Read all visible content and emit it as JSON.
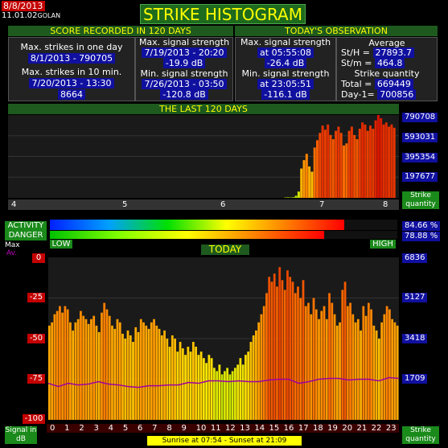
{
  "header": {
    "date": "8/8/2013",
    "time": "11.01.02",
    "location": "GOLAN",
    "title": "STRIKE HISTOGRAM"
  },
  "score_panel": {
    "title": "SCORE RECORDED IN 120 DAYS",
    "max_one_day_label": "Max. strikes in one day",
    "max_one_day_value": "8/1/2013 - 790705",
    "max_10min_label": "Max. strikes in 10 min.",
    "max_10min_value": "7/20/2013 - 13:30",
    "max_10min_count": "8664",
    "max_signal_label": "Max. signal strength",
    "max_signal_date": "7/19/2013 - 20:20",
    "max_signal_value": "-19.9 dB",
    "min_signal_label": "Min. signal strength",
    "min_signal_date": "7/26/2013 - 03:50",
    "min_signal_value": "-120.8 dB"
  },
  "today_panel": {
    "title": "TODAY'S OBSERVATION",
    "max_signal_label": "Max. signal strength",
    "max_signal_time": "at 05:55:08",
    "max_signal_value": "-26.4 dB",
    "min_signal_label": "Min. signal strength",
    "min_signal_time": "at 23:05:51",
    "min_signal_value": "-116.1 dB",
    "average_label": "Average",
    "st_h_label": "St/H =",
    "st_h_value": "27893.7",
    "st_m_label": "St/m =",
    "st_m_value": "464.8",
    "quantity_label": "Strike quantity",
    "total_label": "Total  =",
    "total_value": "669449",
    "day1_label": "Day-1=",
    "day1_value": "700856"
  },
  "last120": {
    "title": "THE LAST 120 DAYS",
    "y_labels": [
      "790708",
      "593031",
      "395354",
      "197677"
    ],
    "x_labels": [
      "4",
      "5",
      "6",
      "7",
      "8"
    ],
    "right_label": "Strike quantity"
  },
  "activity": {
    "activity_label": "ACTIVITY",
    "danger_label": "DANGER",
    "activity_value": "84.66 %",
    "danger_value": "78.88 %",
    "activity_fraction": 0.8466,
    "danger_fraction": 0.7888,
    "low_label": "LOW",
    "high_label": "HIGH"
  },
  "today_chart": {
    "title": "TODAY",
    "max_label": "Max",
    "av_label": "Av.",
    "y_left": [
      "0",
      "-25",
      "-50",
      "-75",
      "-100"
    ],
    "y_right": [
      "6836",
      "5127",
      "3418",
      "1709"
    ],
    "x_labels": [
      "0",
      "1",
      "2",
      "3",
      "4",
      "5",
      "6",
      "7",
      "8",
      "9",
      "10",
      "11",
      "12",
      "13",
      "14",
      "15",
      "16",
      "17",
      "18",
      "19",
      "20",
      "21",
      "22",
      "23"
    ],
    "left_axis_label": "Signal in dB",
    "right_axis_label": "Strike quantity",
    "sun_label": "Sunrise at 07:54  -  Sunset at 21:09"
  },
  "colors": {
    "title_bg": "#1e6a1e",
    "title_text": "#ffff00",
    "value_bg": "#1010a0",
    "date_bg": "#c40000"
  },
  "chart_data": [
    {
      "type": "bar",
      "title": "THE LAST 120 DAYS",
      "ylabel": "Strike quantity",
      "ylim": [
        0,
        790708
      ],
      "x_tick_labels": [
        "4",
        "5",
        "6",
        "7",
        "8"
      ],
      "values": [
        4000,
        5000,
        3500,
        6000,
        20000,
        60000,
        280000,
        360000,
        420000,
        300000,
        250000,
        480000,
        550000,
        620000,
        690000,
        650000,
        700000,
        600000,
        560000,
        640000,
        680000,
        620000,
        500000,
        520000,
        640000,
        680000,
        600000,
        560000,
        660000,
        720000,
        700000,
        640000,
        690000,
        660000,
        740000,
        790705,
        760000,
        700000,
        720000,
        680000,
        700856,
        669449
      ]
    },
    {
      "type": "bar",
      "title": "TODAY",
      "xlabel": "",
      "ylabel": "Signal in dB",
      "ylim": [
        -100,
        0
      ],
      "x_tick_labels": [
        "0",
        "1",
        "2",
        "3",
        "4",
        "5",
        "6",
        "7",
        "8",
        "9",
        "10",
        "11",
        "12",
        "13",
        "14",
        "15",
        "16",
        "17",
        "18",
        "19",
        "20",
        "21",
        "22",
        "23"
      ],
      "right_ylim": [
        0,
        6836
      ],
      "max_db": [
        -42,
        -40,
        -35,
        -33,
        -30,
        -34,
        -30,
        -32,
        -40,
        -45,
        -40,
        -38,
        -33,
        -36,
        -38,
        -41,
        -38,
        -36,
        -42,
        -46,
        -34,
        -28,
        -32,
        -36,
        -42,
        -44,
        -38,
        -40,
        -47,
        -50,
        -45,
        -48,
        -52,
        -43,
        -46,
        -38,
        -40,
        -42,
        -44,
        -40,
        -38,
        -42,
        -44,
        -48,
        -45,
        -50,
        -55,
        -48,
        -50,
        -58,
        -52,
        -56,
        -60,
        -55,
        -58,
        -52,
        -55,
        -60,
        -58,
        -62,
        -65,
        -60,
        -62,
        -68,
        -70,
        -66,
        -72,
        -70,
        -68,
        -72,
        -70,
        -68,
        -66,
        -62,
        -66,
        -60,
        -58,
        -52,
        -48,
        -45,
        -40,
        -35,
        -30,
        -22,
        -12,
        -15,
        -10,
        -18,
        -6,
        -14,
        -20,
        -8,
        -12,
        -15,
        -22,
        -18,
        -25,
        -14,
        -30,
        -28,
        -35,
        -25,
        -32,
        -38,
        -33,
        -30,
        -38,
        -22,
        -28,
        -35,
        -42,
        -40,
        -20,
        -15,
        -30,
        -28,
        -35,
        -40,
        -38,
        -45,
        -30,
        -36,
        -28,
        -32,
        -42,
        -45,
        -50,
        -40,
        -35,
        -30,
        -32,
        -38,
        -40,
        -42
      ],
      "average_db": [
        -77.5,
        -79.5,
        -77.5,
        -78.5,
        -78.0,
        -76.5,
        -78.0,
        -78.5,
        -79.5,
        -80.0,
        -79.0,
        -79.0,
        -78.5,
        -78.5,
        -77.0,
        -77.5,
        -76.0,
        -76.0,
        -76.5,
        -76.0,
        -76.5,
        -76.5,
        -75.5,
        -75.0,
        -75.0,
        -77.5,
        -76.5,
        -75.0,
        -74.5,
        -74.5,
        -75.5,
        -75.0,
        -75.0,
        -76.0,
        -74.0,
        -74.5
      ]
    }
  ]
}
